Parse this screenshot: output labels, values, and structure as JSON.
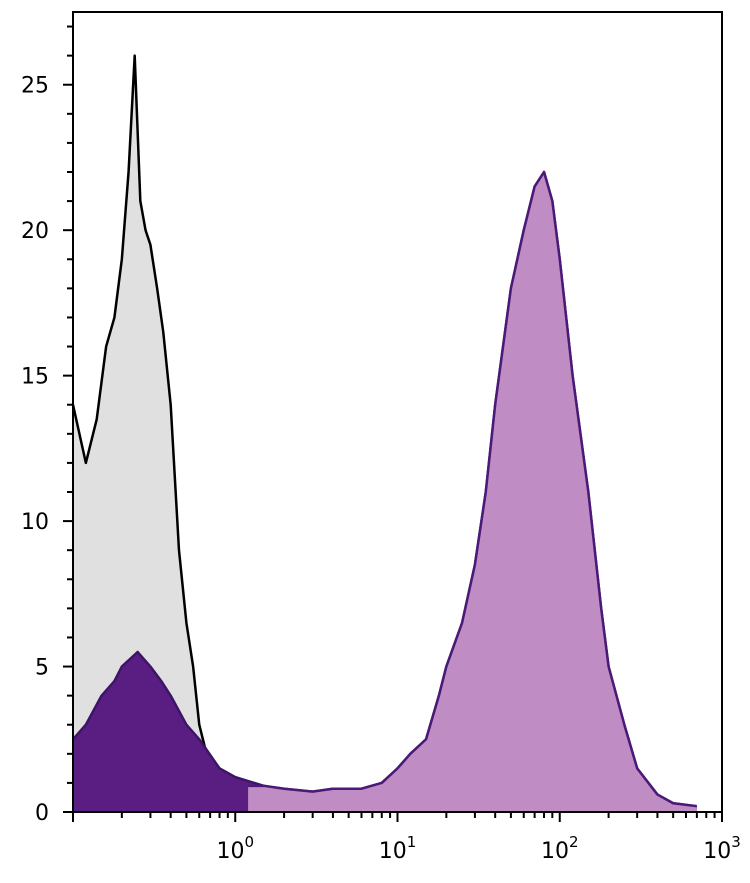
{
  "chart_data": {
    "type": "area",
    "title": "",
    "xlabel": "",
    "ylabel": "",
    "x_scale": "log",
    "xlim": [
      0.1,
      1000
    ],
    "ylim": [
      0,
      27.5
    ],
    "grid": false,
    "legend": "none",
    "x_ticks": [
      {
        "value": 1,
        "base": "10",
        "exp": "0"
      },
      {
        "value": 10,
        "base": "10",
        "exp": "1"
      },
      {
        "value": 100,
        "base": "10",
        "exp": "2"
      },
      {
        "value": 1000,
        "base": "10",
        "exp": "3"
      }
    ],
    "y_ticks": [
      {
        "value": 0,
        "label": "0"
      },
      {
        "value": 5,
        "label": "5"
      },
      {
        "value": 10,
        "label": "10"
      },
      {
        "value": 15,
        "label": "15"
      },
      {
        "value": 20,
        "label": "20"
      },
      {
        "value": 25,
        "label": "25"
      }
    ],
    "series": [
      {
        "fill_color": "#e0e0e0",
        "line_color": "#000000",
        "x": [
          0.1,
          0.12,
          0.14,
          0.16,
          0.18,
          0.2,
          0.22,
          0.24,
          0.26,
          0.28,
          0.3,
          0.33,
          0.36,
          0.4,
          0.45,
          0.5,
          0.55,
          0.6,
          0.7,
          0.8,
          0.9,
          1.0,
          1.2
        ],
        "y": [
          14,
          12,
          13.5,
          16,
          17,
          19,
          22,
          26,
          21,
          20,
          19.5,
          18,
          16.5,
          14,
          9,
          6.5,
          5,
          3,
          1.5,
          0.6,
          0.3,
          0.2,
          0
        ]
      },
      {
        "fill_color": "#5a1e82",
        "line_color": "#3d1566",
        "x": [
          0.1,
          0.12,
          0.15,
          0.18,
          0.2,
          0.25,
          0.3,
          0.35,
          0.4,
          0.5,
          0.6,
          0.8,
          1,
          1.5,
          2,
          3,
          4,
          6,
          8,
          10,
          12,
          15,
          18,
          20,
          25,
          30,
          35,
          40,
          50,
          60,
          70,
          80,
          90,
          100,
          120,
          150,
          180,
          200,
          250,
          300,
          400,
          500,
          700
        ],
        "y": [
          2.5,
          3,
          4,
          4.5,
          5,
          5.5,
          5,
          4.5,
          4,
          3,
          2.5,
          1.5,
          1.2,
          0.9,
          0.8,
          0.7,
          0.8,
          0.8,
          1,
          1.5,
          2,
          2.5,
          4,
          5,
          6.5,
          8.5,
          11,
          14,
          18,
          20,
          21.5,
          22,
          21,
          19,
          15,
          11,
          7,
          5,
          3,
          1.5,
          0.6,
          0.3,
          0.2
        ]
      },
      {
        "fill_color": "#c08cc4",
        "line_color": "#4a1a78",
        "x": [
          1.2,
          1.5,
          2,
          3,
          4,
          6,
          8,
          10,
          12,
          15,
          18,
          20,
          25,
          30,
          35,
          40,
          50,
          60,
          70,
          80,
          90,
          100,
          120,
          150,
          180,
          200,
          250,
          300,
          400,
          500,
          700
        ],
        "y": [
          0.9,
          0.9,
          0.8,
          0.7,
          0.8,
          0.8,
          1,
          1.5,
          2,
          2.5,
          4,
          5,
          6.5,
          8.5,
          11,
          14,
          18,
          20,
          21.5,
          22,
          21,
          19,
          15,
          11,
          7,
          5,
          3,
          1.5,
          0.6,
          0.3,
          0.2
        ]
      }
    ]
  }
}
